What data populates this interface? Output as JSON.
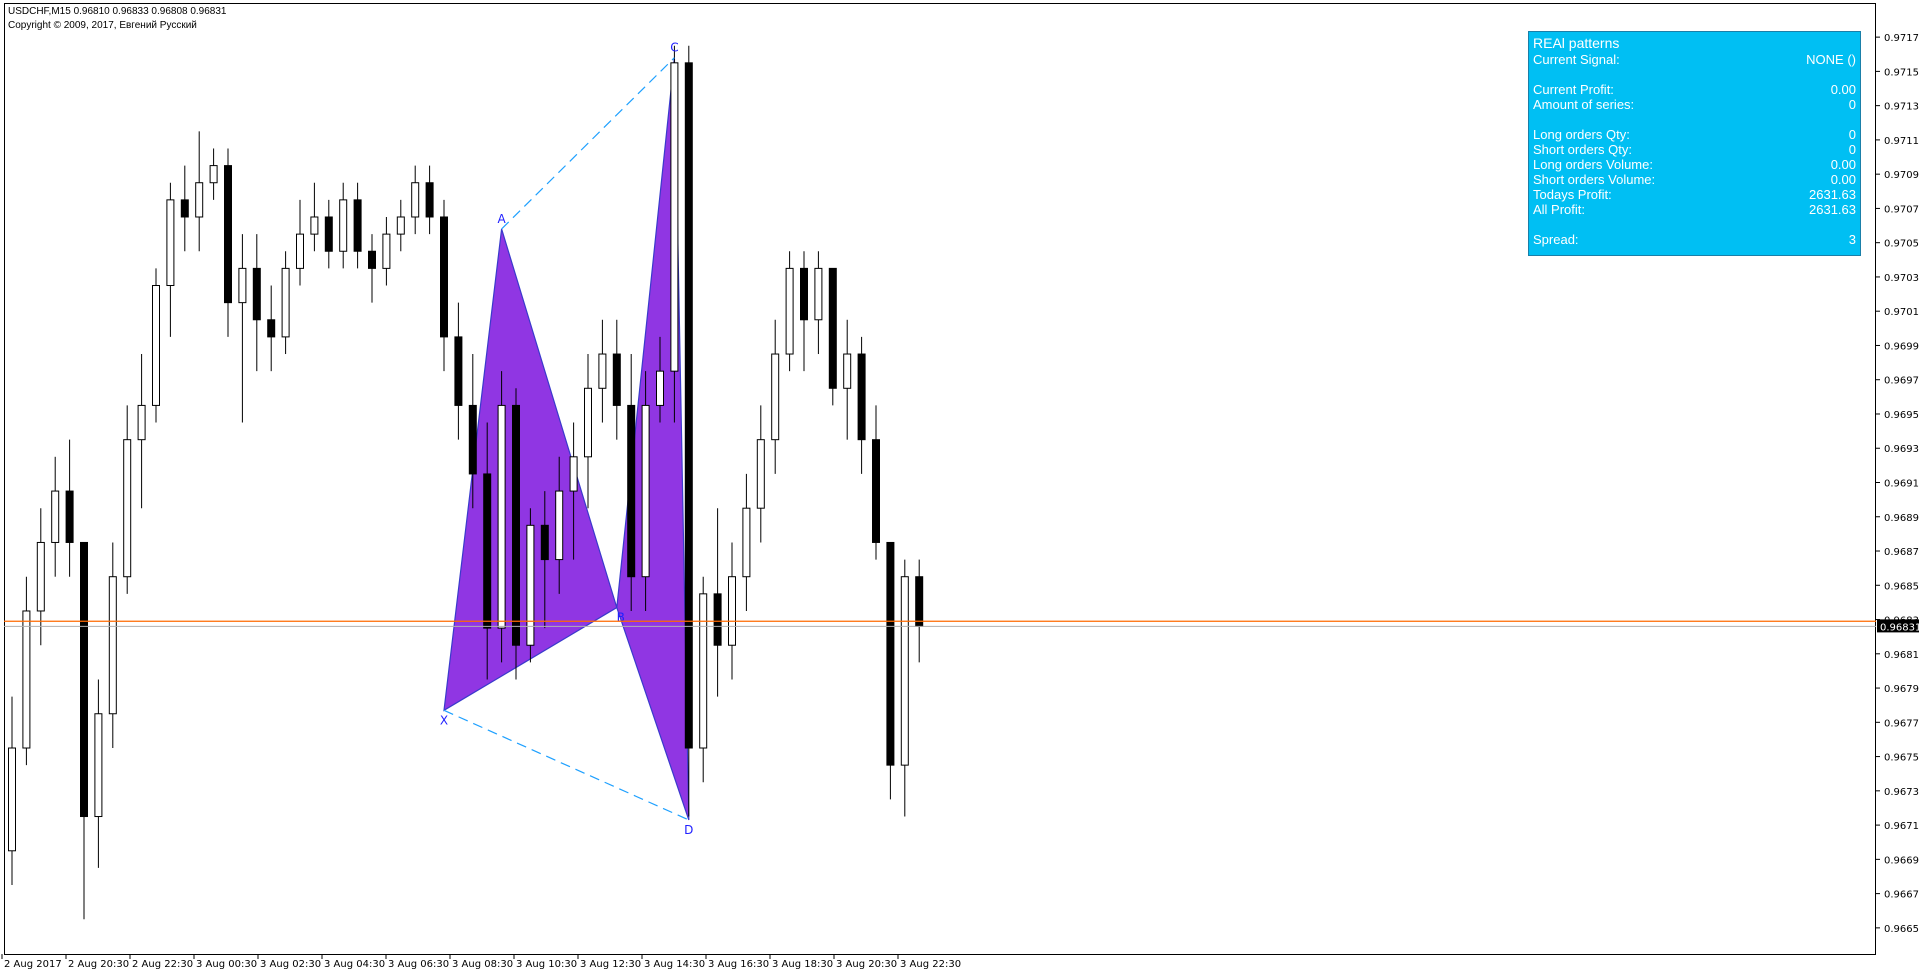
{
  "header": {
    "symbol_line": "USDCHF,M15  0.96810 0.96833 0.96808 0.96831",
    "copyright": "Copyright © 2009,  2017, Евгений Русский"
  },
  "panel": {
    "title": "REAl patterns",
    "rows": [
      {
        "label": "Current Signal:",
        "value": "NONE ()"
      },
      {
        "label": "Current Profit:",
        "value": "0.00"
      },
      {
        "label": "Amount of series:",
        "value": "0"
      },
      {
        "label": "Long orders Qty:",
        "value": "0"
      },
      {
        "label": "Short orders Qty:",
        "value": "0"
      },
      {
        "label": "Long orders Volume:",
        "value": "0.00"
      },
      {
        "label": "Short orders Volume:",
        "value": "0.00"
      },
      {
        "label": "Todays Profit:",
        "value": "2631.63"
      },
      {
        "label": "All Profit:",
        "value": "2631.63"
      },
      {
        "label": "Spread:",
        "value": "3"
      }
    ],
    "background": "#00bff3"
  },
  "price_axis": {
    "ticks": [
      "0.97175",
      "0.97155",
      "0.97135",
      "0.97115",
      "0.97095",
      "0.97075",
      "0.97055",
      "0.97035",
      "0.97015",
      "0.96995",
      "0.96975",
      "0.96955",
      "0.96935",
      "0.96915",
      "0.96895",
      "0.96875",
      "0.96855",
      "0.96835",
      "0.96815",
      "0.96795",
      "0.96775",
      "0.96755",
      "0.96735",
      "0.96715",
      "0.96695",
      "0.96675",
      "0.96655"
    ],
    "current_price": "0.96831",
    "ask_price": "0.96834"
  },
  "time_axis": {
    "ticks": [
      "2 Aug 2017",
      "2 Aug 20:30",
      "2 Aug 22:30",
      "3 Aug 00:30",
      "3 Aug 02:30",
      "3 Aug 04:30",
      "3 Aug 06:30",
      "3 Aug 08:30",
      "3 Aug 10:30",
      "3 Aug 12:30",
      "3 Aug 14:30",
      "3 Aug 16:30",
      "3 Aug 18:30",
      "3 Aug 20:30",
      "3 Aug 22:30"
    ]
  },
  "pattern": {
    "points": [
      {
        "label": "X",
        "price": 0.96782
      },
      {
        "label": "A",
        "price": 0.97063
      },
      {
        "label": "B",
        "price": 0.96842
      },
      {
        "label": "C",
        "price": 0.97163
      },
      {
        "label": "D",
        "price": 0.96718
      }
    ],
    "fill_color": "#8a2be2"
  },
  "chart_data": {
    "type": "candlestick",
    "symbol": "USDCHF",
    "timeframe": "M15",
    "ylim": [
      0.96645,
      0.97185
    ],
    "candles": [
      [
        0.967,
        0.9679,
        0.9668,
        0.9676
      ],
      [
        0.9676,
        0.9686,
        0.9675,
        0.9684
      ],
      [
        0.9684,
        0.969,
        0.9682,
        0.9688
      ],
      [
        0.9688,
        0.9693,
        0.9686,
        0.9691
      ],
      [
        0.9691,
        0.9694,
        0.9686,
        0.9688
      ],
      [
        0.9688,
        0.9688,
        0.9666,
        0.9672
      ],
      [
        0.9672,
        0.968,
        0.9669,
        0.9678
      ],
      [
        0.9678,
        0.9688,
        0.9676,
        0.9686
      ],
      [
        0.9686,
        0.9696,
        0.9685,
        0.9694
      ],
      [
        0.9694,
        0.9699,
        0.969,
        0.9696
      ],
      [
        0.9696,
        0.9704,
        0.9695,
        0.9703
      ],
      [
        0.9703,
        0.9709,
        0.97,
        0.9708
      ],
      [
        0.9708,
        0.971,
        0.9705,
        0.9707
      ],
      [
        0.9707,
        0.9712,
        0.9705,
        0.9709
      ],
      [
        0.9709,
        0.9711,
        0.9708,
        0.971
      ],
      [
        0.971,
        0.9711,
        0.97,
        0.9702
      ],
      [
        0.9702,
        0.9706,
        0.9695,
        0.9704
      ],
      [
        0.9704,
        0.9706,
        0.9698,
        0.9701
      ],
      [
        0.9701,
        0.9703,
        0.9698,
        0.97
      ],
      [
        0.97,
        0.9705,
        0.9699,
        0.9704
      ],
      [
        0.9704,
        0.9708,
        0.9703,
        0.9706
      ],
      [
        0.9706,
        0.9709,
        0.9705,
        0.9707
      ],
      [
        0.9707,
        0.9708,
        0.9704,
        0.9705
      ],
      [
        0.9705,
        0.9709,
        0.9704,
        0.9708
      ],
      [
        0.9708,
        0.9709,
        0.9704,
        0.9705
      ],
      [
        0.9705,
        0.9706,
        0.9702,
        0.9704
      ],
      [
        0.9704,
        0.9707,
        0.9703,
        0.9706
      ],
      [
        0.9706,
        0.9708,
        0.9705,
        0.9707
      ],
      [
        0.9707,
        0.971,
        0.9706,
        0.9709
      ],
      [
        0.9709,
        0.971,
        0.9706,
        0.9707
      ],
      [
        0.9707,
        0.9708,
        0.9698,
        0.97
      ],
      [
        0.97,
        0.9702,
        0.9694,
        0.9696
      ],
      [
        0.9696,
        0.9699,
        0.969,
        0.9692
      ],
      [
        0.9692,
        0.9695,
        0.968,
        0.9683
      ],
      [
        0.9683,
        0.9698,
        0.9681,
        0.9696
      ],
      [
        0.9696,
        0.9697,
        0.968,
        0.9682
      ],
      [
        0.9682,
        0.969,
        0.9681,
        0.9689
      ],
      [
        0.9689,
        0.9691,
        0.9683,
        0.9687
      ],
      [
        0.9687,
        0.9693,
        0.9685,
        0.9691
      ],
      [
        0.9691,
        0.9695,
        0.9687,
        0.9693
      ],
      [
        0.9693,
        0.9699,
        0.969,
        0.9697
      ],
      [
        0.9697,
        0.9701,
        0.9695,
        0.9699
      ],
      [
        0.9699,
        0.9701,
        0.9694,
        0.9696
      ],
      [
        0.9696,
        0.9699,
        0.9684,
        0.9686
      ],
      [
        0.9686,
        0.9698,
        0.9684,
        0.9696
      ],
      [
        0.9696,
        0.97,
        0.9695,
        0.9698
      ],
      [
        0.9698,
        0.9717,
        0.9695,
        0.9716
      ],
      [
        0.9716,
        0.9717,
        0.9672,
        0.9676
      ],
      [
        0.9676,
        0.9686,
        0.9674,
        0.9685
      ],
      [
        0.9685,
        0.969,
        0.9679,
        0.9682
      ],
      [
        0.9682,
        0.9688,
        0.968,
        0.9686
      ],
      [
        0.9686,
        0.9692,
        0.9684,
        0.969
      ],
      [
        0.969,
        0.9696,
        0.9688,
        0.9694
      ],
      [
        0.9694,
        0.9701,
        0.9692,
        0.9699
      ],
      [
        0.9699,
        0.9705,
        0.9698,
        0.9704
      ],
      [
        0.9704,
        0.9705,
        0.9698,
        0.9701
      ],
      [
        0.9701,
        0.9705,
        0.9699,
        0.9704
      ],
      [
        0.9704,
        0.9704,
        0.9696,
        0.9697
      ],
      [
        0.9697,
        0.9701,
        0.9694,
        0.9699
      ],
      [
        0.9699,
        0.97,
        0.9692,
        0.9694
      ],
      [
        0.9694,
        0.9696,
        0.9687,
        0.9688
      ],
      [
        0.9688,
        0.9688,
        0.9673,
        0.9675
      ],
      [
        0.9675,
        0.9687,
        0.9672,
        0.9686
      ],
      [
        0.9686,
        0.9687,
        0.9681,
        0.96831
      ]
    ]
  }
}
